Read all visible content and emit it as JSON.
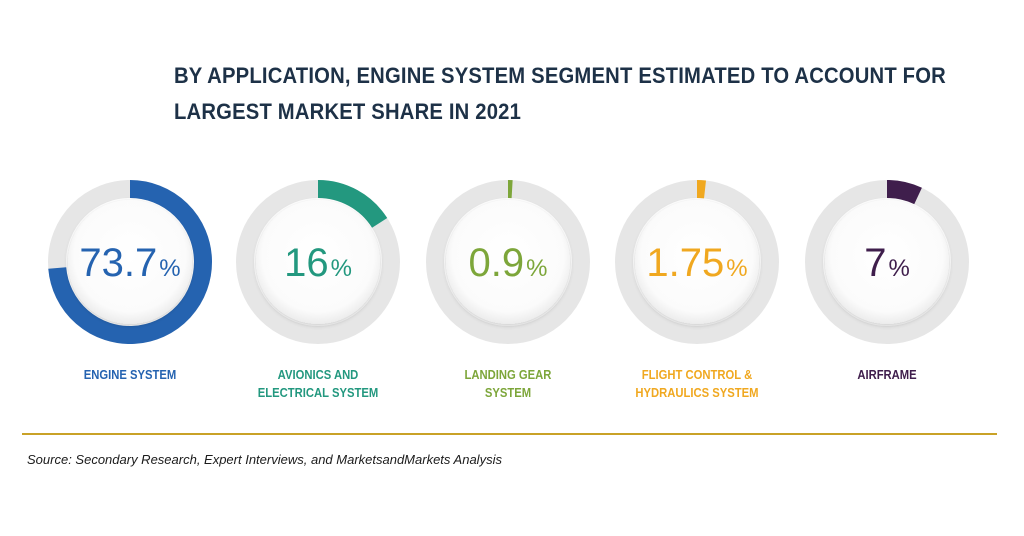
{
  "title": {
    "line1": "BY APPLICATION, ENGINE SYSTEM SEGMENT ESTIMATED TO ACCOUNT FOR",
    "line2": "LARGEST MARKET SHARE IN 2021"
  },
  "source": "Source: Secondary Research, Expert Interviews, and MarketsandMarkets Analysis",
  "colors": {
    "ring_track": "#e6e6e6",
    "divider": "#c9a227"
  },
  "chart_data": {
    "type": "pie",
    "variant": "donut-gauges",
    "title": "BY APPLICATION, ENGINE SYSTEM SEGMENT ESTIMATED TO ACCOUNT FOR LARGEST MARKET SHARE IN 2021",
    "unit": "%",
    "categories": [
      "ENGINE SYSTEM",
      "AVIONICS AND ELECTRICAL SYSTEM",
      "LANDING GEAR SYSTEM",
      "FLIGHT CONTROL & HYDRAULICS SYSTEM",
      "AIRFRAME"
    ],
    "values": [
      73.7,
      16,
      0.9,
      1.75,
      7
    ],
    "segments": [
      {
        "label": "ENGINE SYSTEM",
        "value": 73.7,
        "display": "73.7",
        "color": "#2563b0"
      },
      {
        "label": "AVIONICS AND\nELECTRICAL SYSTEM",
        "value": 16,
        "display": "16",
        "color": "#23987f"
      },
      {
        "label": "LANDING GEAR\nSYSTEM",
        "value": 0.9,
        "display": "0.9",
        "color": "#7da63a"
      },
      {
        "label": "FLIGHT CONTROL &\nHYDRAULICS SYSTEM",
        "value": 1.75,
        "display": "1.75",
        "color": "#f0a820"
      },
      {
        "label": "AIRFRAME",
        "value": 7,
        "display": "7",
        "color": "#3f1e4c"
      }
    ]
  }
}
